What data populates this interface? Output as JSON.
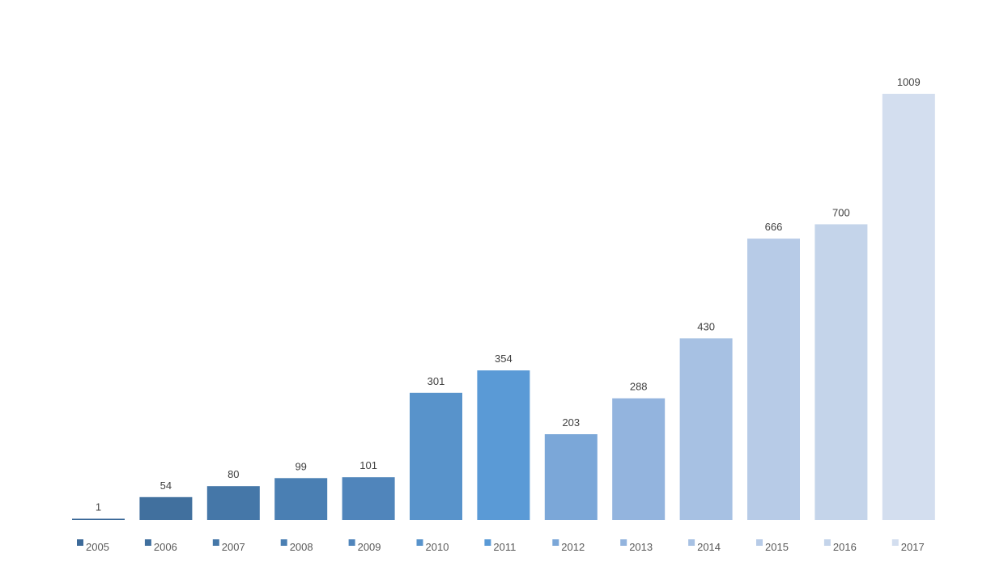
{
  "chart_data": {
    "type": "bar",
    "title": "",
    "xlabel": "",
    "ylabel": "",
    "categories": [
      "2005",
      "2006",
      "2007",
      "2008",
      "2009",
      "2010",
      "2011",
      "2012",
      "2013",
      "2014",
      "2015",
      "2016",
      "2017"
    ],
    "values": [
      1,
      54,
      80,
      99,
      101,
      301,
      354,
      203,
      288,
      430,
      666,
      700,
      1009
    ],
    "colors": [
      "#3D6A99",
      "#41709E",
      "#4577A8",
      "#4A7FB3",
      "#5085BB",
      "#5893CB",
      "#5A9AD6",
      "#7BA7D8",
      "#93B4DE",
      "#A7C1E3",
      "#B7CBE7",
      "#C4D4EA",
      "#D3DEEF"
    ],
    "data_labels": true,
    "grid": false,
    "legend": "bottom",
    "ylim": [
      0,
      1009
    ]
  }
}
